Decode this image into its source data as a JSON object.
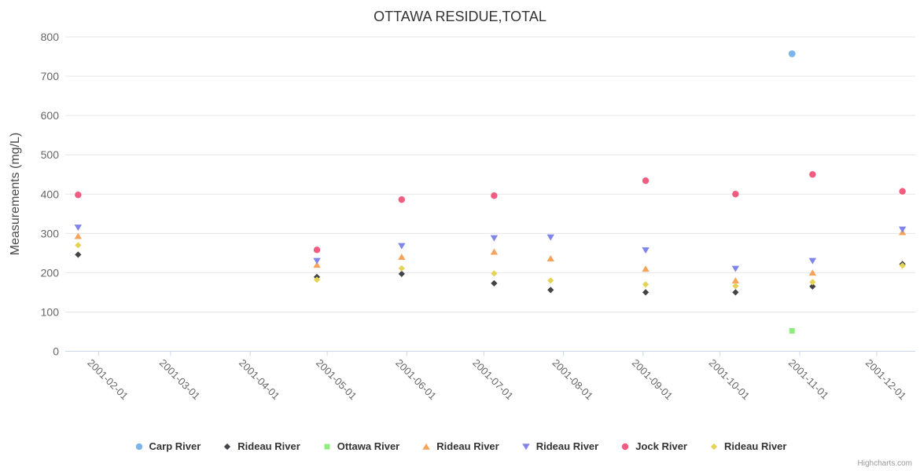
{
  "credits": "Highcharts.com",
  "chart_data": {
    "type": "scatter",
    "title": "OTTAWA RESIDUE,TOTAL",
    "xlabel": "",
    "ylabel": "Measurements (mg/L)",
    "ylim": [
      0,
      800
    ],
    "ytick_interval": 100,
    "y_ticks": [
      0,
      100,
      200,
      300,
      400,
      500,
      600,
      700,
      800
    ],
    "x_ticks": [
      "2001-02-01",
      "2001-03-01",
      "2001-04-01",
      "2001-05-01",
      "2001-06-01",
      "2001-07-01",
      "2001-08-01",
      "2001-09-01",
      "2001-10-01",
      "2001-11-01",
      "2001-12-01"
    ],
    "xlim_days_of_year": [
      19,
      350
    ],
    "grid": true,
    "legend_position": "bottom",
    "series": [
      {
        "name": "Carp River",
        "color": "#7cb5ec",
        "marker": "circle",
        "points": [
          [
            "2001-10-29",
            757
          ]
        ]
      },
      {
        "name": "Rideau River",
        "color": "#434348",
        "marker": "diamond",
        "points": [
          [
            "2001-01-24",
            246
          ],
          [
            "2001-04-27",
            189
          ],
          [
            "2001-05-30",
            197
          ],
          [
            "2001-07-05",
            173
          ],
          [
            "2001-07-27",
            156
          ],
          [
            "2001-09-02",
            150
          ],
          [
            "2001-10-07",
            150
          ],
          [
            "2001-11-06",
            165
          ],
          [
            "2001-12-11",
            222
          ]
        ]
      },
      {
        "name": "Ottawa River",
        "color": "#90ed7d",
        "marker": "square",
        "points": [
          [
            "2001-10-29",
            52
          ]
        ]
      },
      {
        "name": "Rideau River",
        "color": "#f7a35c",
        "marker": "triangle",
        "points": [
          [
            "2001-01-24",
            293
          ],
          [
            "2001-04-27",
            220
          ],
          [
            "2001-05-30",
            240
          ],
          [
            "2001-07-05",
            253
          ],
          [
            "2001-07-27",
            236
          ],
          [
            "2001-09-02",
            210
          ],
          [
            "2001-10-07",
            180
          ],
          [
            "2001-11-06",
            200
          ],
          [
            "2001-12-11",
            303
          ]
        ]
      },
      {
        "name": "Rideau River",
        "color": "#8085e9",
        "marker": "triangle-down",
        "points": [
          [
            "2001-01-24",
            315
          ],
          [
            "2001-04-27",
            230
          ],
          [
            "2001-05-30",
            268
          ],
          [
            "2001-07-05",
            288
          ],
          [
            "2001-07-27",
            290
          ],
          [
            "2001-09-02",
            257
          ],
          [
            "2001-10-07",
            210
          ],
          [
            "2001-11-06",
            230
          ],
          [
            "2001-12-11",
            310
          ]
        ]
      },
      {
        "name": "Jock River",
        "color": "#f15c80",
        "marker": "circle",
        "points": [
          [
            "2001-01-24",
            398
          ],
          [
            "2001-04-27",
            258
          ],
          [
            "2001-05-30",
            386
          ],
          [
            "2001-07-05",
            396
          ],
          [
            "2001-09-02",
            434
          ],
          [
            "2001-10-07",
            400
          ],
          [
            "2001-11-06",
            450
          ],
          [
            "2001-12-11",
            407
          ]
        ]
      },
      {
        "name": "Rideau River",
        "color": "#e4d354",
        "marker": "diamond",
        "points": [
          [
            "2001-01-24",
            270
          ],
          [
            "2001-04-27",
            182
          ],
          [
            "2001-05-30",
            211
          ],
          [
            "2001-07-05",
            198
          ],
          [
            "2001-07-27",
            180
          ],
          [
            "2001-09-02",
            170
          ],
          [
            "2001-10-07",
            166
          ],
          [
            "2001-11-06",
            176
          ],
          [
            "2001-12-11",
            218
          ]
        ]
      }
    ]
  }
}
